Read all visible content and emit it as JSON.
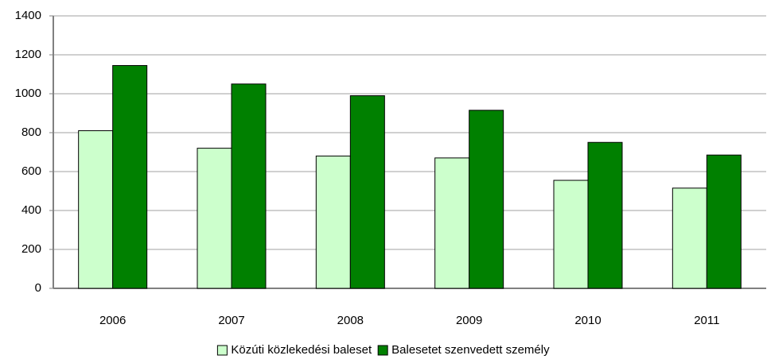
{
  "chart_data": {
    "type": "bar",
    "categories": [
      "2006",
      "2007",
      "2008",
      "2009",
      "2010",
      "2011"
    ],
    "series": [
      {
        "name": "Közúti közlekedési baleset",
        "color": "#ccffcc",
        "values": [
          810,
          720,
          680,
          670,
          555,
          515
        ]
      },
      {
        "name": "Balesetet szenvedett személy",
        "color": "#008000",
        "values": [
          1145,
          1050,
          990,
          915,
          750,
          685
        ]
      }
    ],
    "ylim": [
      0,
      1400
    ],
    "yticks": [
      0,
      200,
      400,
      600,
      800,
      1000,
      1200,
      1400
    ],
    "grid": true,
    "legend": "bottom"
  }
}
